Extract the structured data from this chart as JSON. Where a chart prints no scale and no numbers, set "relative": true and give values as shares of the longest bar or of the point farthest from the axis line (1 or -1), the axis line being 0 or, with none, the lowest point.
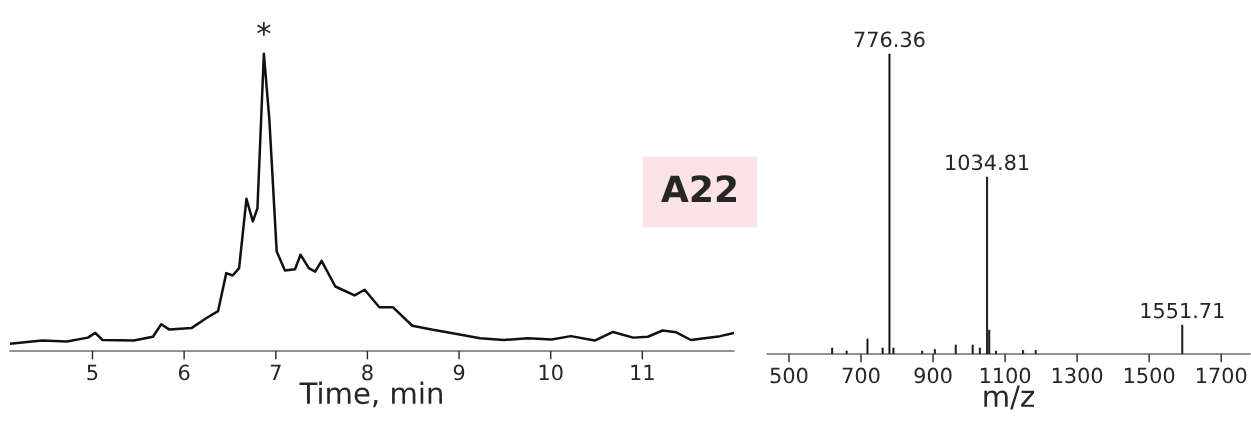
{
  "chart_data": [
    {
      "type": "line",
      "relative": true,
      "xlabel": "Time, min",
      "xlim": [
        4.1,
        12.0
      ],
      "xticks": [
        5,
        6,
        7,
        8,
        9,
        10,
        11
      ],
      "grid": false,
      "legend": false,
      "tick_labels": "x",
      "x": [
        4.1,
        4.45,
        4.72,
        4.95,
        5.03,
        5.11,
        5.45,
        5.66,
        5.75,
        5.84,
        6.08,
        6.24,
        6.37,
        6.46,
        6.53,
        6.6,
        6.68,
        6.75,
        6.8,
        6.87,
        6.93,
        7.01,
        7.1,
        7.21,
        7.27,
        7.36,
        7.43,
        7.5,
        7.65,
        7.86,
        7.97,
        8.13,
        8.28,
        8.49,
        8.7,
        8.96,
        9.23,
        9.49,
        9.75,
        10.01,
        10.22,
        10.48,
        10.68,
        10.9,
        11.06,
        11.22,
        11.37,
        11.53,
        11.85,
        12.0
      ],
      "series": [
        {
          "color": "#111111",
          "values": [
            0.024,
            0.035,
            0.032,
            0.045,
            0.061,
            0.037,
            0.035,
            0.048,
            0.09,
            0.072,
            0.077,
            0.11,
            0.134,
            0.262,
            0.254,
            0.279,
            0.512,
            0.436,
            0.48,
            1.0,
            0.778,
            0.335,
            0.271,
            0.275,
            0.324,
            0.279,
            0.267,
            0.303,
            0.217,
            0.187,
            0.206,
            0.147,
            0.147,
            0.085,
            0.072,
            0.058,
            0.043,
            0.037,
            0.043,
            0.039,
            0.05,
            0.035,
            0.064,
            0.045,
            0.048,
            0.069,
            0.063,
            0.037,
            0.05,
            0.061
          ]
        }
      ],
      "annotations": [
        {
          "text": "*",
          "x": 6.87,
          "y": 1.0
        },
        "A22"
      ]
    },
    {
      "type": "bar",
      "relative": true,
      "xlabel": "m/z",
      "xlim": [
        439,
        1780
      ],
      "xticks": [
        500,
        700,
        900,
        1100,
        1300,
        1500,
        1700
      ],
      "grid": false,
      "legend": false,
      "tick_labels": "x",
      "x": [
        620,
        660,
        718,
        760,
        779,
        790,
        870,
        905,
        963,
        1010,
        1030,
        1050,
        1056,
        1075,
        1150,
        1185,
        1592
      ],
      "series": [
        {
          "color": "#111111",
          "values": [
            0.02,
            0.01,
            0.05,
            0.02,
            1.0,
            0.02,
            0.01,
            0.015,
            0.03,
            0.03,
            0.02,
            0.59,
            0.08,
            0.01,
            0.012,
            0.012,
            0.096
          ]
        }
      ],
      "annotations": [
        {
          "text": "776.36",
          "x": 779,
          "y": 1.0
        },
        {
          "text": "1034.81",
          "x": 1050,
          "y": 0.59
        },
        {
          "text": "1551.71",
          "x": 1592,
          "y": 0.096
        }
      ]
    }
  ]
}
